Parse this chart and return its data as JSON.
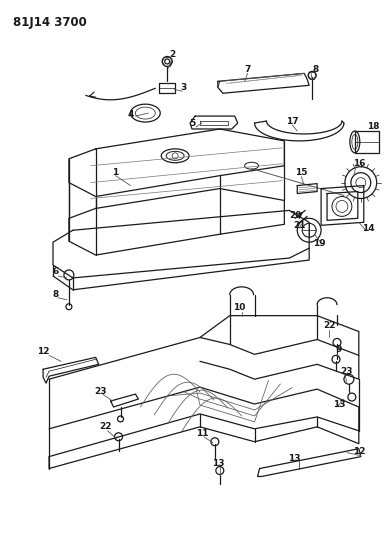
{
  "title": "81J14 3700",
  "bg_color": "#ffffff",
  "line_color": "#1a1a1a",
  "title_fontsize": 8.5,
  "label_fontsize": 6.5,
  "fig_width": 3.89,
  "fig_height": 5.33
}
